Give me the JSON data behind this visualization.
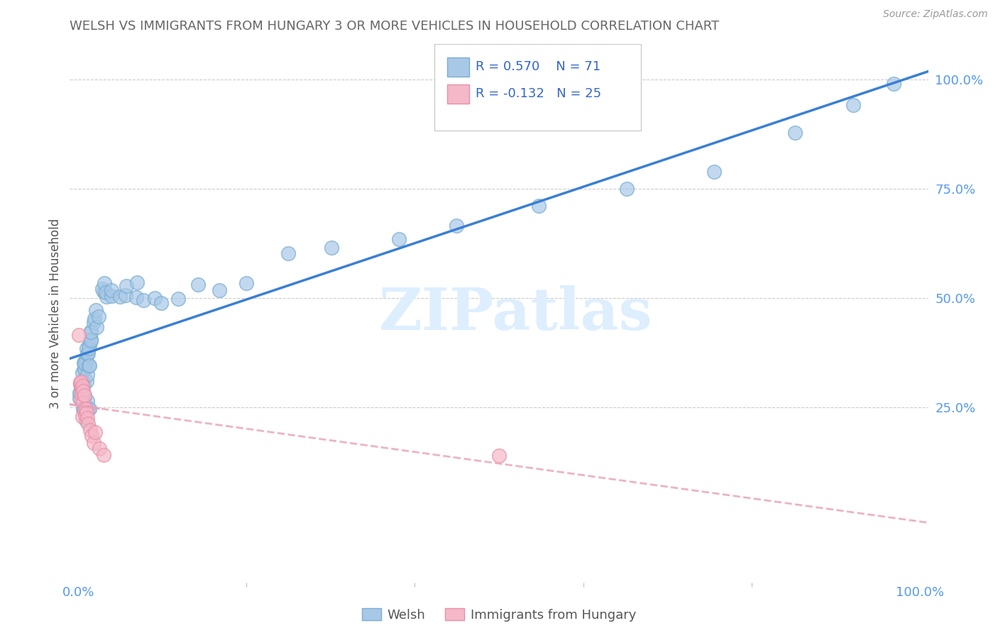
{
  "title": "WELSH VS IMMIGRANTS FROM HUNGARY 3 OR MORE VEHICLES IN HOUSEHOLD CORRELATION CHART",
  "source": "Source: ZipAtlas.com",
  "ylabel": "3 or more Vehicles in Household",
  "legend_r_welsh": "R = 0.570",
  "legend_n_welsh": "N = 71",
  "legend_r_hungary": "R = -0.132",
  "legend_n_hungary": "N = 25",
  "legend_label_welsh": "Welsh",
  "legend_label_hungary": "Immigrants from Hungary",
  "watermark": "ZIPatlas",
  "blue_scatter_color": "#a8c8e8",
  "blue_scatter_edge": "#7aaed0",
  "pink_scatter_color": "#f4b8c8",
  "pink_scatter_edge": "#e890a8",
  "blue_line_color": "#3a7fd5",
  "pink_line_color": "#e8a0b8",
  "title_color": "#666666",
  "ylabel_color": "#555555",
  "tick_color": "#5599ee",
  "grid_color": "#cccccc",
  "legend_text_color": "#3366cc",
  "legend_n_color": "#3366cc",
  "source_color": "#999999",
  "watermark_color": "#ddeeff",
  "welsh_x": [
    0.002,
    0.003,
    0.004,
    0.004,
    0.005,
    0.005,
    0.006,
    0.006,
    0.007,
    0.007,
    0.008,
    0.008,
    0.009,
    0.009,
    0.01,
    0.01,
    0.011,
    0.011,
    0.012,
    0.012,
    0.013,
    0.013,
    0.014,
    0.015,
    0.016,
    0.016,
    0.017,
    0.018,
    0.019,
    0.02,
    0.022,
    0.024,
    0.026,
    0.028,
    0.03,
    0.033,
    0.036,
    0.04,
    0.044,
    0.048,
    0.053,
    0.058,
    0.065,
    0.072,
    0.08,
    0.09,
    0.1,
    0.12,
    0.14,
    0.17,
    0.2,
    0.25,
    0.3,
    0.38,
    0.45,
    0.55,
    0.65,
    0.75,
    0.85,
    0.92,
    0.97,
    0.003,
    0.004,
    0.005,
    0.006,
    0.007,
    0.008,
    0.009,
    0.01,
    0.012,
    0.014
  ],
  "welsh_y": [
    0.28,
    0.27,
    0.3,
    0.29,
    0.31,
    0.28,
    0.33,
    0.3,
    0.35,
    0.32,
    0.34,
    0.33,
    0.36,
    0.35,
    0.34,
    0.36,
    0.35,
    0.37,
    0.36,
    0.38,
    0.37,
    0.35,
    0.39,
    0.4,
    0.41,
    0.38,
    0.42,
    0.44,
    0.43,
    0.45,
    0.46,
    0.47,
    0.49,
    0.5,
    0.51,
    0.48,
    0.5,
    0.52,
    0.51,
    0.49,
    0.5,
    0.53,
    0.5,
    0.53,
    0.51,
    0.49,
    0.48,
    0.5,
    0.52,
    0.5,
    0.55,
    0.58,
    0.6,
    0.62,
    0.65,
    0.7,
    0.75,
    0.8,
    0.87,
    0.94,
    1.0,
    0.26,
    0.27,
    0.25,
    0.27,
    0.26,
    0.27,
    0.25,
    0.24,
    0.26,
    0.25
  ],
  "hungary_x": [
    0.001,
    0.002,
    0.002,
    0.003,
    0.003,
    0.004,
    0.004,
    0.005,
    0.005,
    0.006,
    0.006,
    0.007,
    0.007,
    0.008,
    0.009,
    0.01,
    0.011,
    0.012,
    0.014,
    0.016,
    0.018,
    0.02,
    0.025,
    0.03,
    0.5
  ],
  "hungary_y": [
    0.42,
    0.32,
    0.3,
    0.28,
    0.31,
    0.28,
    0.27,
    0.3,
    0.26,
    0.28,
    0.27,
    0.26,
    0.27,
    0.25,
    0.24,
    0.23,
    0.22,
    0.21,
    0.2,
    0.19,
    0.18,
    0.17,
    0.16,
    0.15,
    0.14
  ],
  "xlim_min": -0.01,
  "xlim_max": 1.01,
  "ylim_min": -0.15,
  "ylim_max": 1.08,
  "yticks": [
    0.25,
    0.5,
    0.75,
    1.0
  ],
  "ytick_labels": [
    "25.0%",
    "50.0%",
    "75.0%",
    "100.0%"
  ],
  "xticks": [
    0.0,
    1.0
  ],
  "xtick_labels": [
    "0.0%",
    "100.0%"
  ]
}
